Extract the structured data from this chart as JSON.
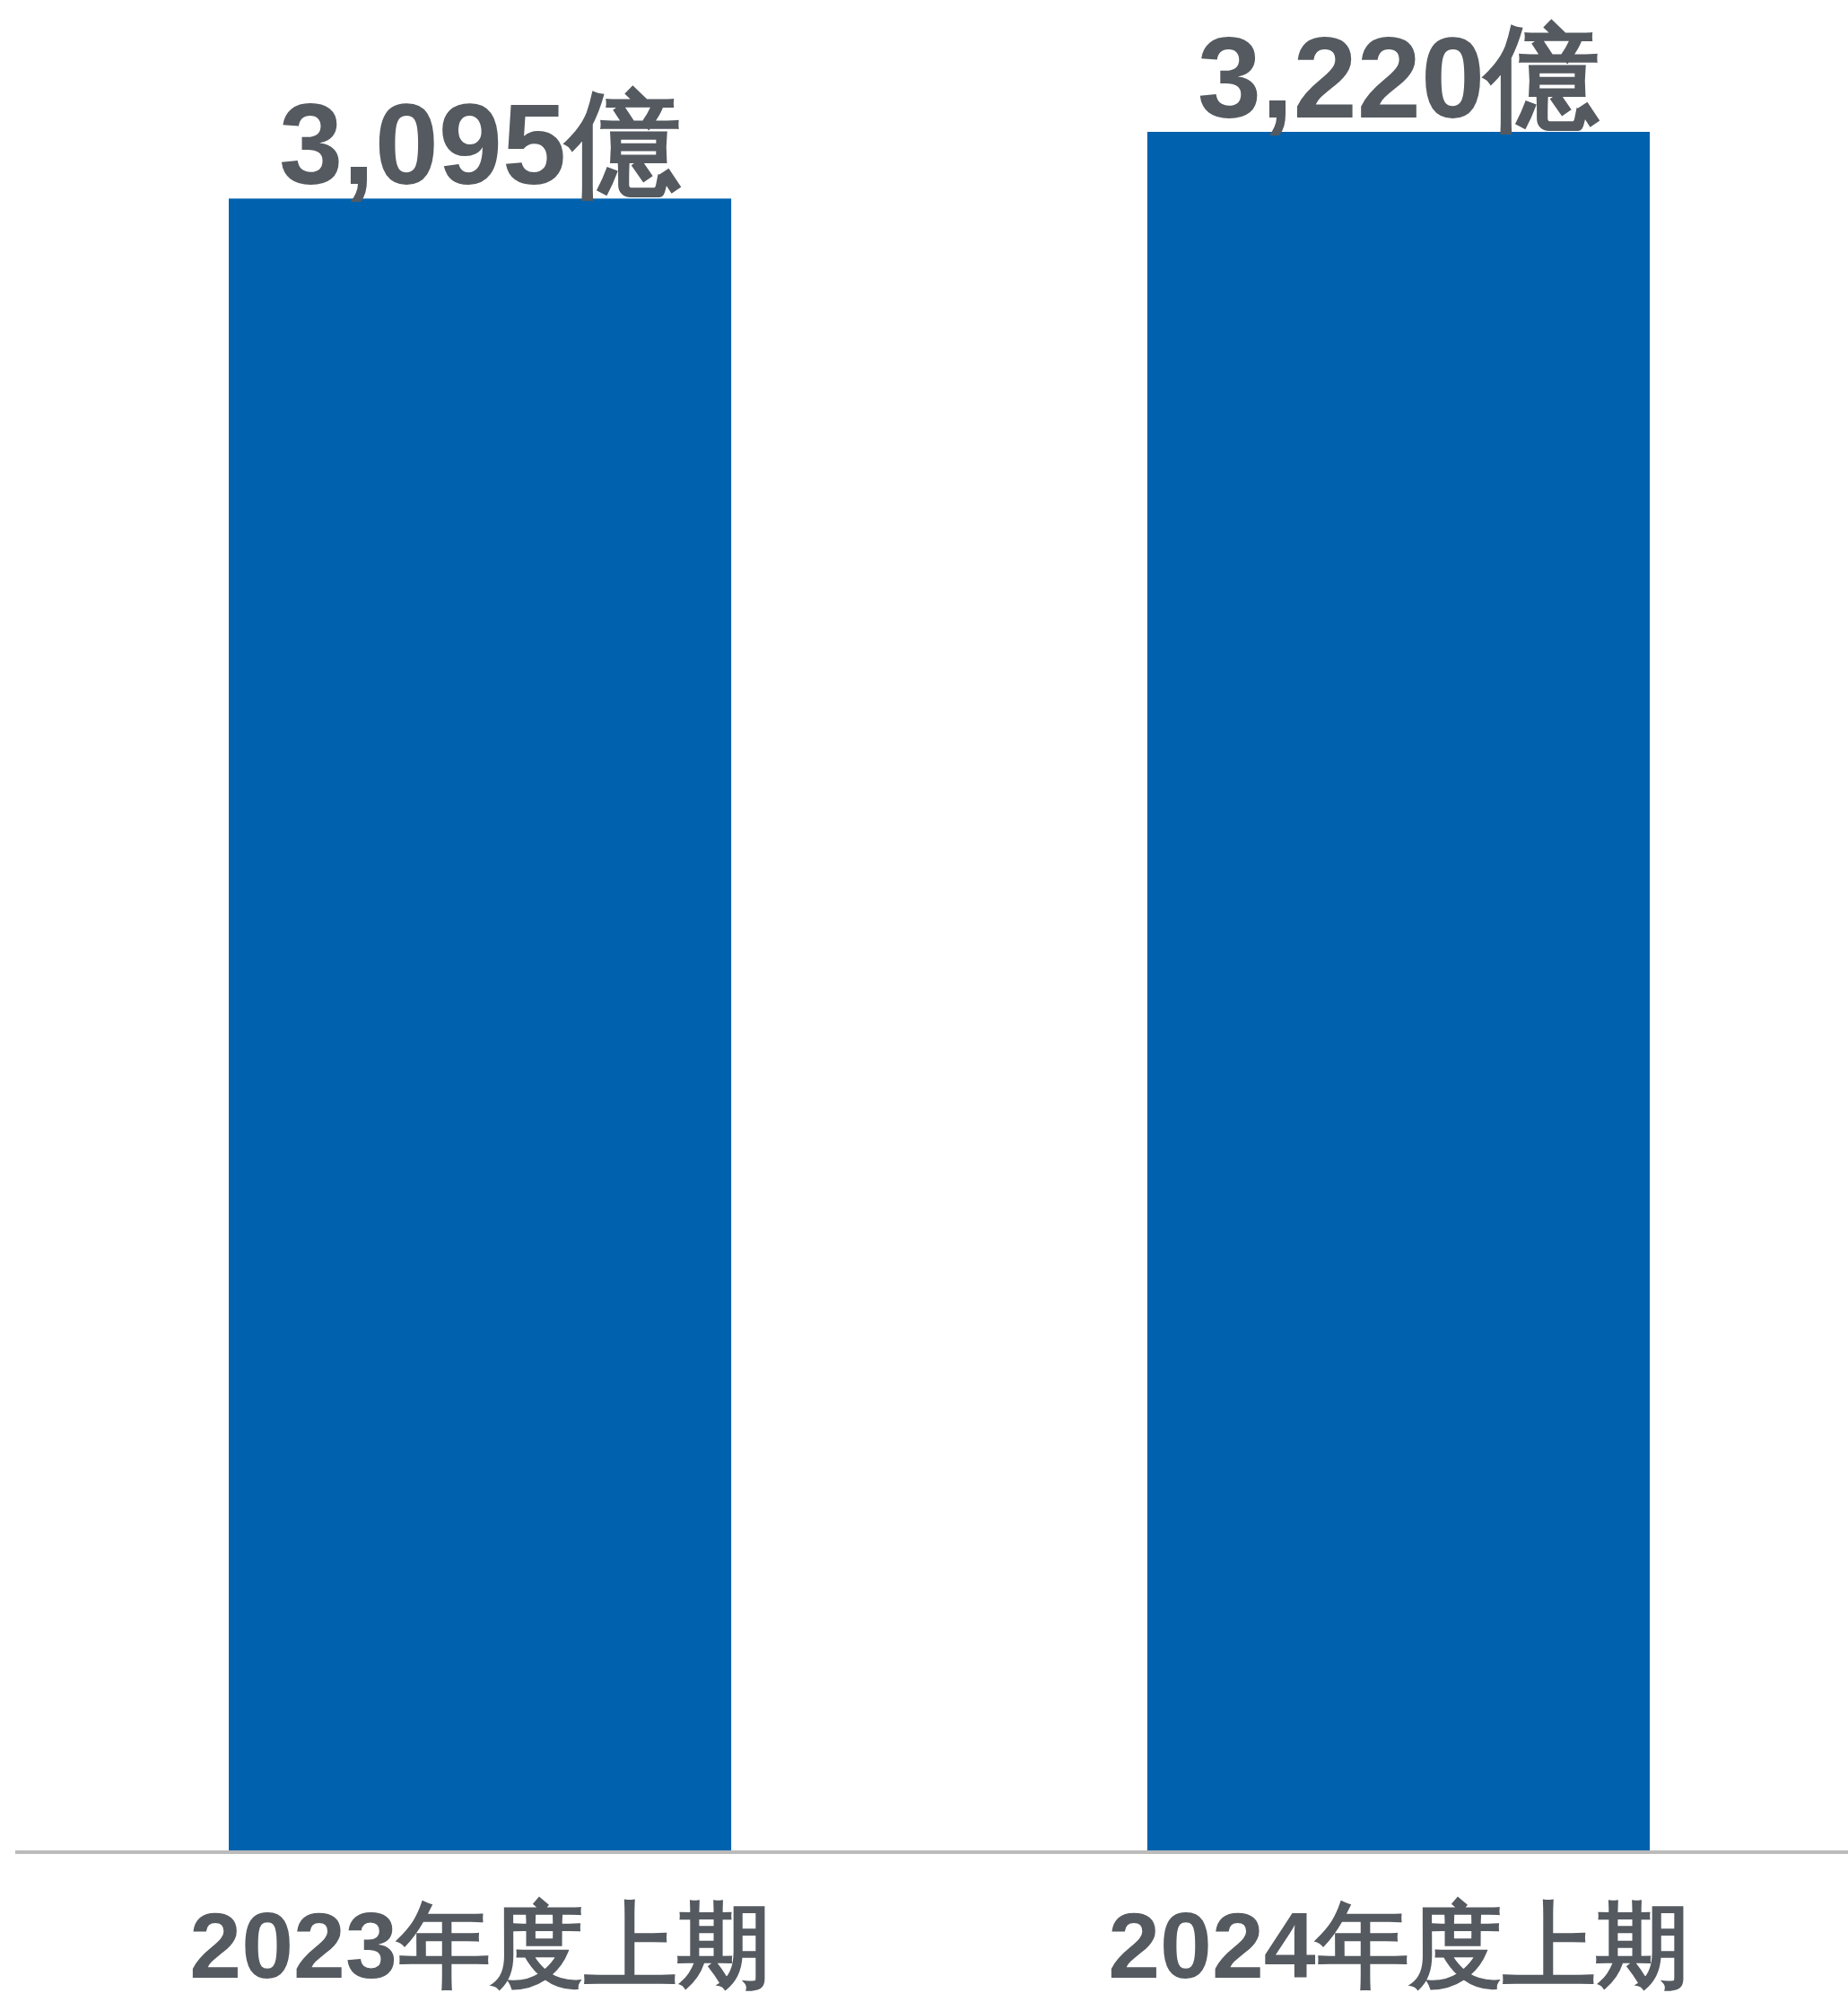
{
  "chart_data": {
    "type": "bar",
    "categories": [
      "2023年度上期",
      "2024年度上期"
    ],
    "values": [
      3095,
      3220
    ],
    "value_labels": [
      "3,095億",
      "3,220億"
    ],
    "color": "#0062ae"
  }
}
